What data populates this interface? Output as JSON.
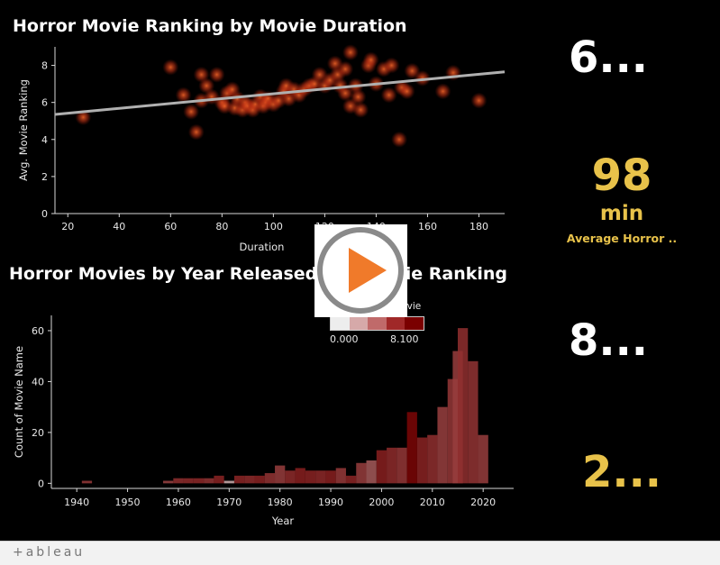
{
  "chart_data": [
    {
      "type": "scatter",
      "title": "Horror Movie Ranking by Movie Duration",
      "xlabel": "Duration",
      "ylabel": "Avg. Movie Ranking",
      "xlim": [
        15,
        190
      ],
      "ylim": [
        0,
        9
      ],
      "xticks": [
        20,
        40,
        60,
        80,
        100,
        120,
        140,
        160,
        180
      ],
      "yticks": [
        0,
        2,
        4,
        6,
        8
      ],
      "trendline": {
        "x1": 15,
        "y1": 5.35,
        "x2": 190,
        "y2": 7.65
      },
      "points": [
        [
          26,
          5.2
        ],
        [
          60,
          7.9
        ],
        [
          65,
          6.4
        ],
        [
          68,
          5.5
        ],
        [
          70,
          4.4
        ],
        [
          72,
          6.1
        ],
        [
          72,
          7.5
        ],
        [
          74,
          6.9
        ],
        [
          76,
          6.3
        ],
        [
          78,
          7.5
        ],
        [
          80,
          6.0
        ],
        [
          81,
          5.8
        ],
        [
          82,
          6.5
        ],
        [
          84,
          6.7
        ],
        [
          85,
          5.7
        ],
        [
          86,
          6.2
        ],
        [
          88,
          5.6
        ],
        [
          89,
          6.0
        ],
        [
          90,
          5.8
        ],
        [
          92,
          5.6
        ],
        [
          93,
          5.9
        ],
        [
          95,
          6.3
        ],
        [
          96,
          5.8
        ],
        [
          97,
          6.0
        ],
        [
          98,
          6.2
        ],
        [
          100,
          5.9
        ],
        [
          102,
          6.1
        ],
        [
          104,
          6.6
        ],
        [
          105,
          6.9
        ],
        [
          106,
          6.2
        ],
        [
          108,
          6.7
        ],
        [
          110,
          6.4
        ],
        [
          112,
          6.7
        ],
        [
          114,
          6.9
        ],
        [
          116,
          7.0
        ],
        [
          118,
          7.5
        ],
        [
          120,
          6.9
        ],
        [
          122,
          7.2
        ],
        [
          124,
          8.1
        ],
        [
          125,
          7.5
        ],
        [
          126,
          6.9
        ],
        [
          128,
          6.5
        ],
        [
          128,
          7.8
        ],
        [
          130,
          8.7
        ],
        [
          130,
          5.8
        ],
        [
          132,
          6.9
        ],
        [
          133,
          6.3
        ],
        [
          134,
          5.6
        ],
        [
          137,
          8.0
        ],
        [
          138,
          8.3
        ],
        [
          140,
          7.0
        ],
        [
          143,
          7.8
        ],
        [
          145,
          6.4
        ],
        [
          146,
          8.0
        ],
        [
          149,
          4.0
        ],
        [
          150,
          6.8
        ],
        [
          152,
          6.6
        ],
        [
          154,
          7.7
        ],
        [
          158,
          7.3
        ],
        [
          166,
          6.6
        ],
        [
          170,
          7.6
        ],
        [
          180,
          6.1
        ]
      ]
    },
    {
      "type": "bar",
      "title": "Horror Movies by Year Released and Movie Ranking",
      "xlabel": "Year",
      "ylabel": "Count of Movie Name",
      "xlim": [
        1935,
        2026
      ],
      "ylim": [
        -2,
        66
      ],
      "xticks": [
        1940,
        1950,
        1960,
        1970,
        1980,
        1990,
        2000,
        2010,
        2020
      ],
      "yticks": [
        0,
        20,
        40,
        60
      ],
      "legend": {
        "title": "Avg. Movie Ranki..",
        "min_label": "0.000",
        "max_label": "8.100",
        "placement": "top-right"
      },
      "bars": [
        [
          1942,
          1,
          6.1
        ],
        [
          1958,
          1,
          5.8
        ],
        [
          1960,
          2,
          6.5
        ],
        [
          1962,
          2,
          6.6
        ],
        [
          1964,
          2,
          6.7
        ],
        [
          1966,
          2,
          6.3
        ],
        [
          1968,
          3,
          6.9
        ],
        [
          1970,
          1,
          2.0
        ],
        [
          1972,
          3,
          6.8
        ],
        [
          1974,
          3,
          6.6
        ],
        [
          1976,
          3,
          6.9
        ],
        [
          1978,
          4,
          6.3
        ],
        [
          1980,
          7,
          6.0
        ],
        [
          1982,
          5,
          6.6
        ],
        [
          1984,
          6,
          7.0
        ],
        [
          1986,
          5,
          6.9
        ],
        [
          1988,
          5,
          6.7
        ],
        [
          1990,
          5,
          7.0
        ],
        [
          1992,
          6,
          6.1
        ],
        [
          1994,
          3,
          6.8
        ],
        [
          1996,
          8,
          6.0
        ],
        [
          1998,
          9,
          5.0
        ],
        [
          2000,
          13,
          7.0
        ],
        [
          2002,
          14,
          6.6
        ],
        [
          2004,
          14,
          6.2
        ],
        [
          2006,
          28,
          7.9
        ],
        [
          2008,
          18,
          6.9
        ],
        [
          2010,
          19,
          6.5
        ],
        [
          2012,
          30,
          5.9
        ],
        [
          2014,
          41,
          6.2
        ],
        [
          2015,
          52,
          6.0
        ],
        [
          2016,
          61,
          6.5
        ],
        [
          2018,
          48,
          6.3
        ],
        [
          2020,
          19,
          6.0
        ]
      ]
    }
  ],
  "kpis": {
    "kpi1": "6...",
    "kpi2": "98",
    "kpi2_unit": "min",
    "kpi2_label": "Average Horror ..",
    "kpi3": "8...",
    "kpi4": "2..."
  },
  "colors": {
    "kpi_white": "#ffffff",
    "kpi_gold": "#e8c24a",
    "bar_dark": "#7a0000",
    "bar_light": "#e6e6e6",
    "scatter_point": "#ff5a2a",
    "trendline": "#b0b0b0",
    "play_icon": "#f07a2a"
  },
  "footer": {
    "logo": "+ableau"
  }
}
